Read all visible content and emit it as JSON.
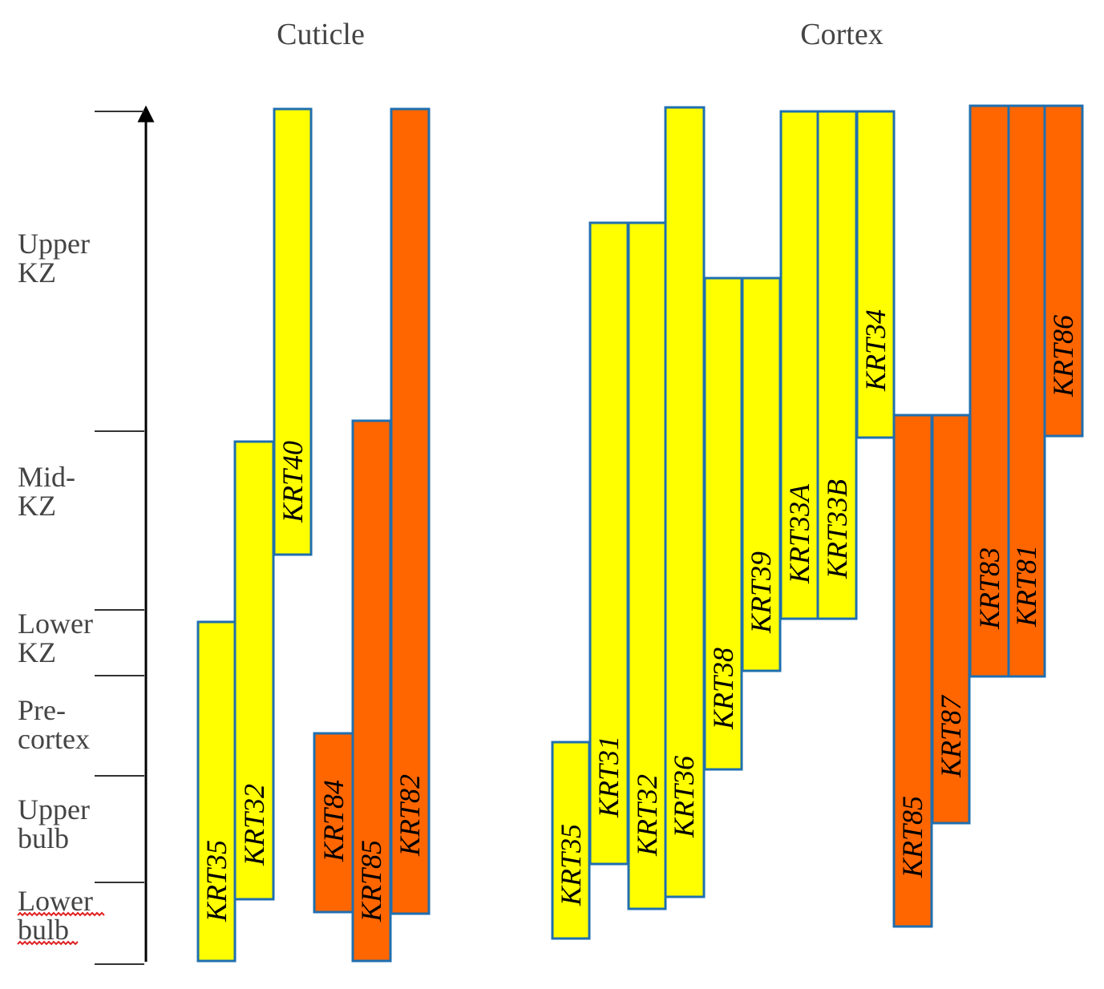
{
  "headers": {
    "cuticle": "Cuticle",
    "cortex": "Cortex"
  },
  "zones": [
    {
      "line1": "Upper",
      "line2": "KZ"
    },
    {
      "line1": "Mid-",
      "line2": "KZ"
    },
    {
      "line1": "Lower",
      "line2": "KZ"
    },
    {
      "line1": "Pre-",
      "line2": "cortex"
    },
    {
      "line1": "Upper",
      "line2": "bulb"
    },
    {
      "line1": "Lower",
      "line2": "bulb"
    }
  ],
  "colors": {
    "type_i": "#ffff00",
    "type_ii": "#ff6600",
    "bar_border": "#1f6fb0",
    "axis": "#000000",
    "squiggle": "#e02020"
  },
  "bars": [
    {
      "label": "KRT35",
      "group": "Cuticle",
      "keratin_type": "type_i"
    },
    {
      "label": "KRT32",
      "group": "Cuticle",
      "keratin_type": "type_i"
    },
    {
      "label": "KRT40",
      "group": "Cuticle",
      "keratin_type": "type_i"
    },
    {
      "label": "KRT84",
      "group": "Cuticle",
      "keratin_type": "type_ii"
    },
    {
      "label": "KRT85",
      "group": "Cuticle",
      "keratin_type": "type_ii"
    },
    {
      "label": "KRT82",
      "group": "Cuticle",
      "keratin_type": "type_ii"
    },
    {
      "label": "KRT35",
      "group": "Cortex",
      "keratin_type": "type_i"
    },
    {
      "label": "KRT31",
      "group": "Cortex",
      "keratin_type": "type_i"
    },
    {
      "label": "KRT32",
      "group": "Cortex",
      "keratin_type": "type_i"
    },
    {
      "label": "KRT36",
      "group": "Cortex",
      "keratin_type": "type_i"
    },
    {
      "label": "KRT38",
      "group": "Cortex",
      "keratin_type": "type_i"
    },
    {
      "label": "KRT39",
      "group": "Cortex",
      "keratin_type": "type_i"
    },
    {
      "label": "KRT33A",
      "group": "Cortex",
      "keratin_type": "type_i"
    },
    {
      "label": "KRT33B",
      "group": "Cortex",
      "keratin_type": "type_i"
    },
    {
      "label": "KRT34",
      "group": "Cortex",
      "keratin_type": "type_i"
    },
    {
      "label": "KRT85",
      "group": "Cortex",
      "keratin_type": "type_ii"
    },
    {
      "label": "KRT87",
      "group": "Cortex",
      "keratin_type": "type_ii"
    },
    {
      "label": "KRT83",
      "group": "Cortex",
      "keratin_type": "type_ii"
    },
    {
      "label": "KRT81",
      "group": "Cortex",
      "keratin_type": "type_ii"
    },
    {
      "label": "KRT86",
      "group": "Cortex",
      "keratin_type": "type_ii"
    }
  ]
}
